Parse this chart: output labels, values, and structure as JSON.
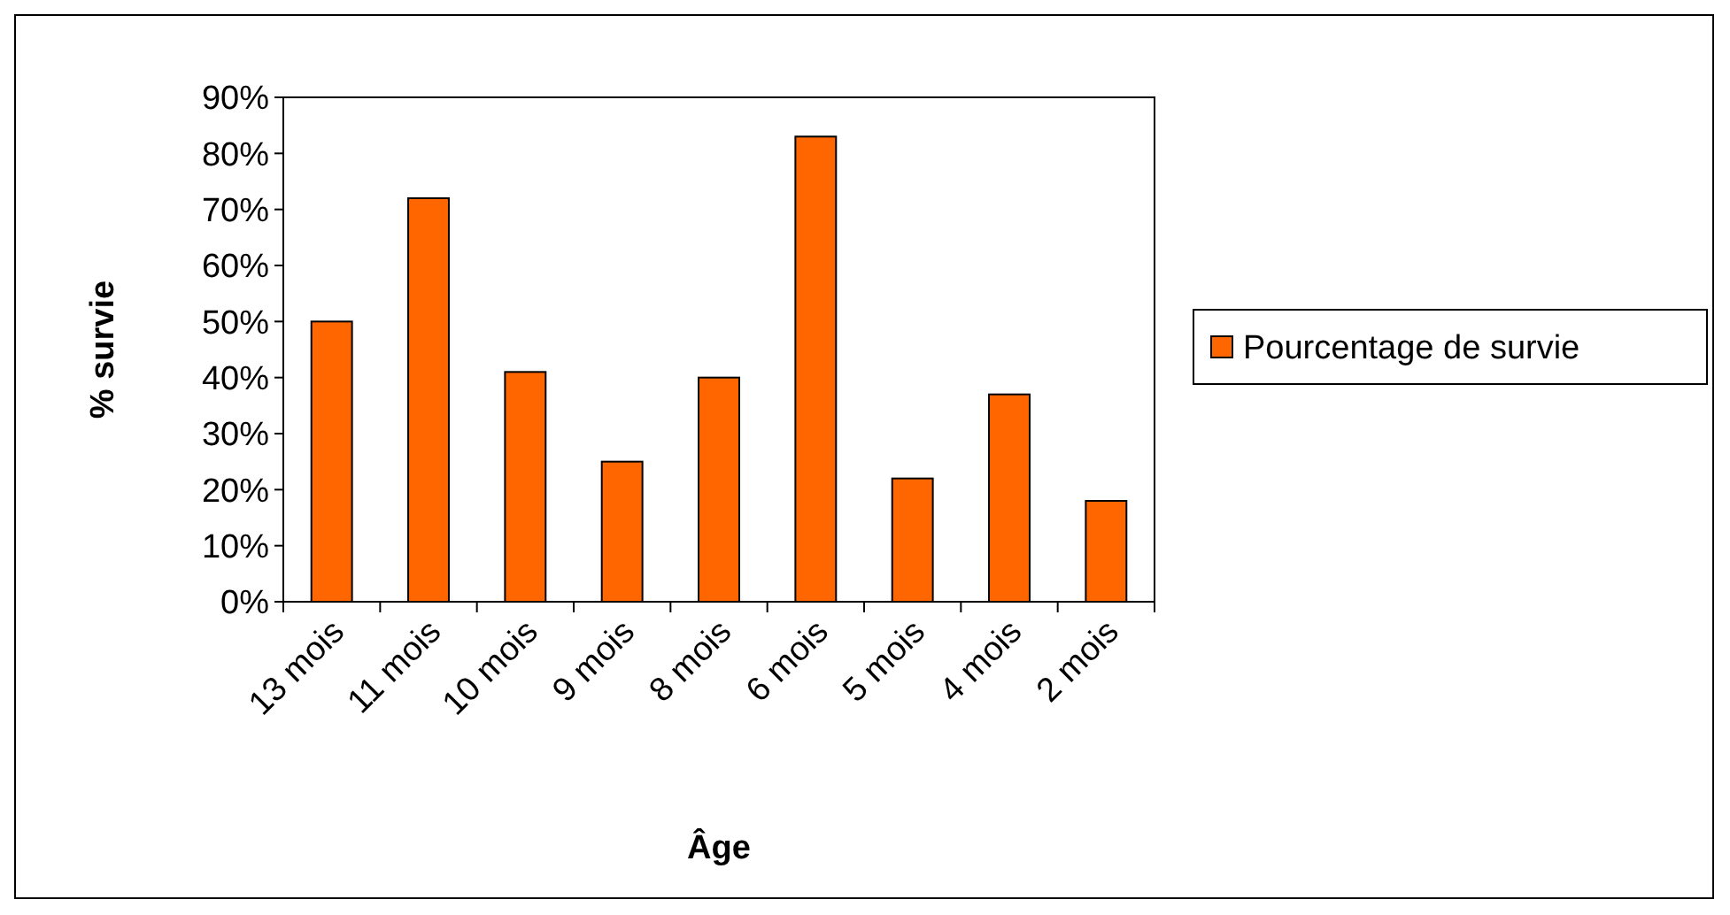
{
  "chart_data": {
    "type": "bar",
    "xlabel": "Âge",
    "ylabel": "% survie",
    "categories": [
      "13 mois",
      "11 mois",
      "10 mois",
      "9 mois",
      "8 mois",
      "6 mois",
      "5 mois",
      "4 mois",
      "2 mois"
    ],
    "series": [
      {
        "name": "Pourcentage de survie",
        "color": "#ff6600",
        "values": [
          50,
          72,
          41,
          25,
          40,
          83,
          22,
          37,
          18
        ]
      }
    ],
    "ylim": [
      0,
      90
    ],
    "yticks": [
      {
        "value": 0,
        "label": "0%"
      },
      {
        "value": 10,
        "label": "10%"
      },
      {
        "value": 20,
        "label": "20%"
      },
      {
        "value": 30,
        "label": "30%"
      },
      {
        "value": 40,
        "label": "40%"
      },
      {
        "value": 50,
        "label": "50%"
      },
      {
        "value": 60,
        "label": "60%"
      },
      {
        "value": 70,
        "label": "70%"
      },
      {
        "value": 80,
        "label": "80%"
      },
      {
        "value": 90,
        "label": "90%"
      }
    ],
    "grid": false,
    "legend": "right"
  }
}
